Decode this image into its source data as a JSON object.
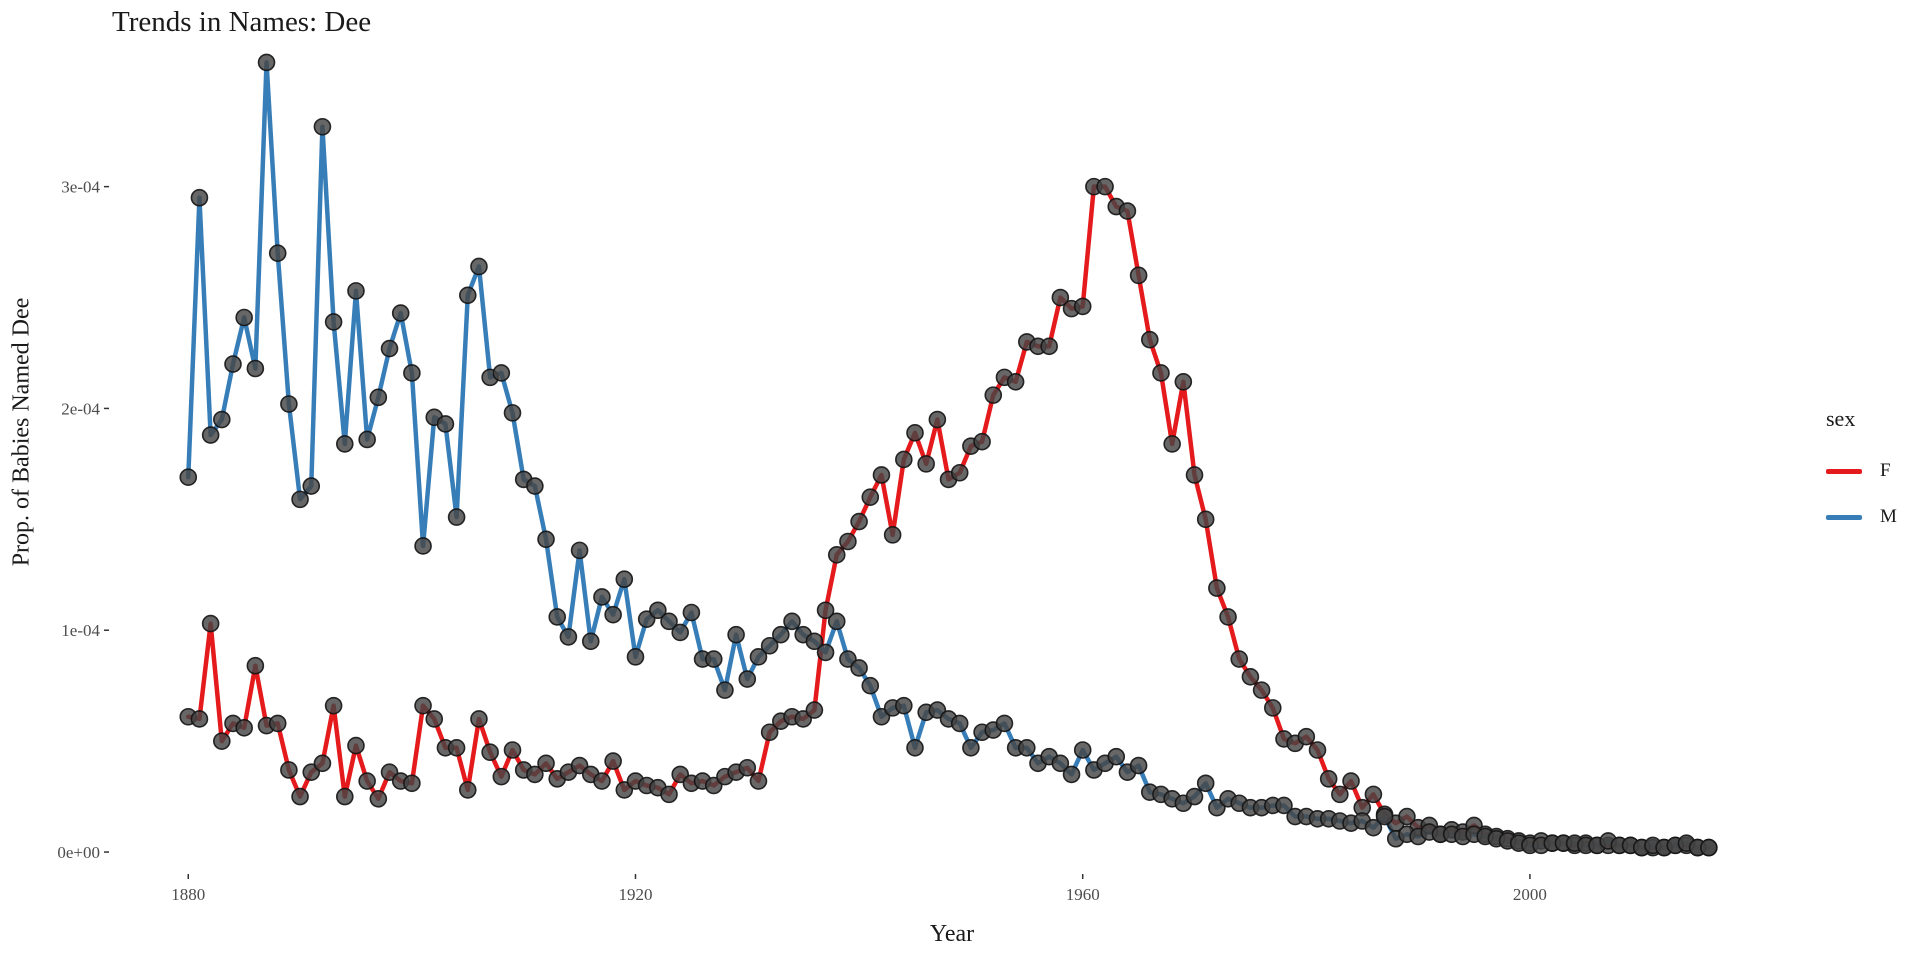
{
  "chart_data": {
    "type": "line",
    "title": "Trends in Names: Dee",
    "xlabel": "Year",
    "ylabel": "Prop. of Babies Named Dee",
    "xlim": [
      1873,
      2017
    ],
    "ylim": [
      -9e-06,
      0.0003625
    ],
    "x_ticks": [
      {
        "value": 1880,
        "label": "1880"
      },
      {
        "value": 1920,
        "label": "1920"
      },
      {
        "value": 1960,
        "label": "1960"
      },
      {
        "value": 2000,
        "label": "2000"
      }
    ],
    "y_ticks": [
      {
        "value": 0,
        "label": "0e+00"
      },
      {
        "value": 0.0001,
        "label": "1e-04"
      },
      {
        "value": 0.0002,
        "label": "2e-04"
      },
      {
        "value": 0.0003,
        "label": "3e-04"
      }
    ],
    "grid": false,
    "legend": {
      "title": "sex",
      "position": "right"
    },
    "series": [
      {
        "name": "F",
        "color": "#e41a1c",
        "x": [
          1880,
          1881,
          1882,
          1883,
          1884,
          1885,
          1886,
          1887,
          1888,
          1889,
          1890,
          1891,
          1892,
          1893,
          1894,
          1895,
          1896,
          1897,
          1898,
          1899,
          1900,
          1901,
          1902,
          1903,
          1904,
          1905,
          1906,
          1907,
          1908,
          1909,
          1910,
          1911,
          1912,
          1913,
          1914,
          1915,
          1916,
          1917,
          1918,
          1919,
          1920,
          1921,
          1922,
          1923,
          1924,
          1925,
          1926,
          1927,
          1928,
          1929,
          1930,
          1931,
          1932,
          1933,
          1934,
          1935,
          1936,
          1937,
          1938,
          1939,
          1940,
          1941,
          1942,
          1943,
          1944,
          1945,
          1946,
          1947,
          1948,
          1949,
          1950,
          1951,
          1952,
          1953,
          1954,
          1955,
          1956,
          1957,
          1958,
          1959,
          1960,
          1961,
          1962,
          1963,
          1964,
          1965,
          1966,
          1967,
          1968,
          1969,
          1970,
          1971,
          1972,
          1973,
          1974,
          1975,
          1976,
          1977,
          1978,
          1979,
          1980,
          1981,
          1982,
          1983,
          1984,
          1985,
          1986,
          1987,
          1988,
          1989,
          1990,
          1991,
          1992,
          1993,
          1994,
          1995,
          1996,
          1997,
          1998,
          1999,
          2000,
          2001,
          2002,
          2003,
          2004,
          2005,
          2006,
          2007,
          2008,
          2009,
          2010,
          2011,
          2012,
          2013,
          2014,
          2015,
          2016
        ],
        "values": [
          6.1e-05,
          6e-05,
          0.000103,
          5e-05,
          5.8e-05,
          5.6e-05,
          8.4e-05,
          5.7e-05,
          5.8e-05,
          3.7e-05,
          2.5e-05,
          3.6e-05,
          4e-05,
          6.6e-05,
          2.5e-05,
          4.8e-05,
          3.2e-05,
          2.4e-05,
          3.6e-05,
          3.2e-05,
          3.1e-05,
          6.6e-05,
          6e-05,
          4.7e-05,
          4.7e-05,
          2.8e-05,
          6e-05,
          4.5e-05,
          3.4e-05,
          4.6e-05,
          3.7e-05,
          3.5e-05,
          4e-05,
          3.3e-05,
          3.6e-05,
          3.9e-05,
          3.5e-05,
          3.2e-05,
          4.1e-05,
          2.8e-05,
          3.2e-05,
          3e-05,
          2.9e-05,
          2.6e-05,
          3.5e-05,
          3.1e-05,
          3.2e-05,
          3e-05,
          3.4e-05,
          3.6e-05,
          3.8e-05,
          3.2e-05,
          5.4e-05,
          5.9e-05,
          6.1e-05,
          6e-05,
          6.4e-05,
          0.000109,
          0.000134,
          0.00014,
          0.000149,
          0.00016,
          0.00017,
          0.000143,
          0.000177,
          0.000189,
          0.000175,
          0.000195,
          0.000168,
          0.000171,
          0.000183,
          0.000185,
          0.000206,
          0.000214,
          0.000212,
          0.00023,
          0.000228,
          0.000228,
          0.00025,
          0.000245,
          0.000246,
          0.0003,
          0.0003,
          0.000291,
          0.000289,
          0.00026,
          0.000231,
          0.000216,
          0.000184,
          0.000212,
          0.00017,
          0.00015,
          0.000119,
          0.000106,
          8.7e-05,
          7.9e-05,
          7.3e-05,
          6.5e-05,
          5.1e-05,
          4.9e-05,
          5.2e-05,
          4.6e-05,
          3.3e-05,
          2.6e-05,
          3.2e-05,
          2e-05,
          2.6e-05,
          1.7e-05,
          1.3e-05,
          1.6e-05,
          1.1e-05,
          1.2e-05,
          8e-06,
          1e-05,
          9e-06,
          1.2e-05,
          8e-06,
          7e-06,
          6e-06,
          5e-06,
          4e-06,
          5e-06,
          4e-06,
          4e-06,
          3e-06,
          4e-06,
          3e-06,
          3e-06,
          3e-06,
          3e-06,
          2e-06,
          2e-06,
          2e-06,
          3e-06,
          3e-06,
          2e-06,
          2e-06
        ]
      },
      {
        "name": "M",
        "color": "#377eb8",
        "x": [
          1880,
          1881,
          1882,
          1883,
          1884,
          1885,
          1886,
          1887,
          1888,
          1889,
          1890,
          1891,
          1892,
          1893,
          1894,
          1895,
          1896,
          1897,
          1898,
          1899,
          1900,
          1901,
          1902,
          1903,
          1904,
          1905,
          1906,
          1907,
          1908,
          1909,
          1910,
          1911,
          1912,
          1913,
          1914,
          1915,
          1916,
          1917,
          1918,
          1919,
          1920,
          1921,
          1922,
          1923,
          1924,
          1925,
          1926,
          1927,
          1928,
          1929,
          1930,
          1931,
          1932,
          1933,
          1934,
          1935,
          1936,
          1937,
          1938,
          1939,
          1940,
          1941,
          1942,
          1943,
          1944,
          1945,
          1946,
          1947,
          1948,
          1949,
          1950,
          1951,
          1952,
          1953,
          1954,
          1955,
          1956,
          1957,
          1958,
          1959,
          1960,
          1961,
          1962,
          1963,
          1964,
          1965,
          1966,
          1967,
          1968,
          1969,
          1970,
          1971,
          1972,
          1973,
          1974,
          1975,
          1976,
          1977,
          1978,
          1979,
          1980,
          1981,
          1982,
          1983,
          1984,
          1985,
          1986,
          1987,
          1988,
          1989,
          1990,
          1991,
          1992,
          1993,
          1994,
          1995,
          1996,
          1997,
          1998,
          1999,
          2000,
          2001,
          2002,
          2003,
          2004,
          2005,
          2006,
          2007,
          2008,
          2009,
          2010,
          2011,
          2012,
          2013,
          2014,
          2015,
          2016
        ],
        "values": [
          0.000169,
          0.000295,
          0.000188,
          0.000195,
          0.00022,
          0.000241,
          0.000218,
          0.000356,
          0.00027,
          0.000202,
          0.000159,
          0.000165,
          0.000327,
          0.000239,
          0.000184,
          0.000253,
          0.000186,
          0.000205,
          0.000227,
          0.000243,
          0.000216,
          0.000138,
          0.000196,
          0.000193,
          0.000151,
          0.000251,
          0.000264,
          0.000214,
          0.000216,
          0.000198,
          0.000168,
          0.000165,
          0.000141,
          0.000106,
          9.7e-05,
          0.000136,
          9.5e-05,
          0.000115,
          0.000107,
          0.000123,
          8.8e-05,
          0.000105,
          0.000109,
          0.000104,
          9.9e-05,
          0.000108,
          8.7e-05,
          8.7e-05,
          7.3e-05,
          9.8e-05,
          7.8e-05,
          8.8e-05,
          9.3e-05,
          9.8e-05,
          0.000104,
          9.8e-05,
          9.5e-05,
          9e-05,
          0.000104,
          8.7e-05,
          8.3e-05,
          7.5e-05,
          6.1e-05,
          6.5e-05,
          6.6e-05,
          4.7e-05,
          6.3e-05,
          6.4e-05,
          6e-05,
          5.8e-05,
          4.7e-05,
          5.4e-05,
          5.5e-05,
          5.8e-05,
          4.7e-05,
          4.7e-05,
          4e-05,
          4.3e-05,
          4e-05,
          3.5e-05,
          4.6e-05,
          3.7e-05,
          4e-05,
          4.3e-05,
          3.6e-05,
          3.9e-05,
          2.7e-05,
          2.6e-05,
          2.4e-05,
          2.2e-05,
          2.5e-05,
          3.1e-05,
          2e-05,
          2.4e-05,
          2.2e-05,
          2e-05,
          2e-05,
          2.1e-05,
          2.1e-05,
          1.6e-05,
          1.6e-05,
          1.5e-05,
          1.5e-05,
          1.4e-05,
          1.3e-05,
          1.4e-05,
          1.1e-05,
          1.6e-05,
          6e-06,
          8e-06,
          7e-06,
          9e-06,
          8e-06,
          8e-06,
          7e-06,
          8e-06,
          7e-06,
          6e-06,
          5e-06,
          4e-06,
          3e-06,
          3e-06,
          4e-06,
          4e-06,
          4e-06,
          3e-06,
          3e-06,
          5e-06,
          3e-06,
          3e-06,
          2e-06,
          3e-06,
          2e-06,
          3e-06,
          4e-06,
          2e-06,
          2e-06
        ]
      }
    ]
  }
}
